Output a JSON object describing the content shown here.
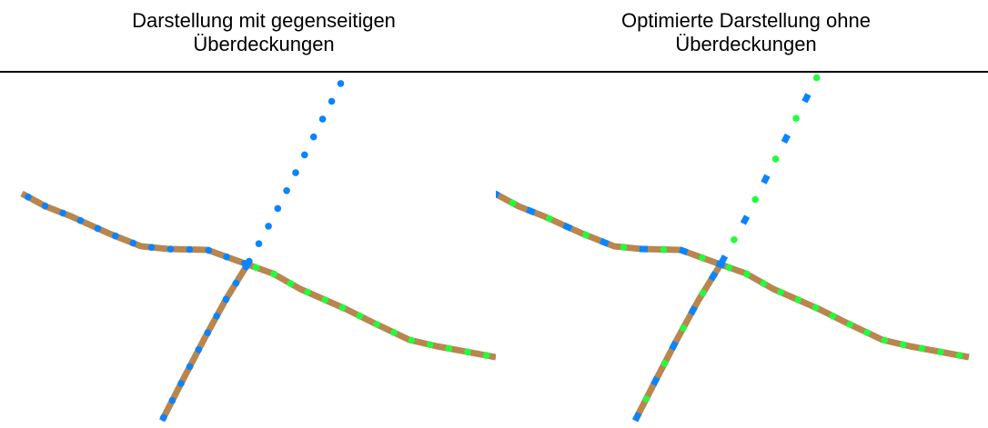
{
  "headings": {
    "left": {
      "line1": "Darstellung mit gegenseitigen",
      "line2": "Überdeckungen"
    },
    "right": {
      "line1": "Optimierte Darstellung ohne",
      "line2": "Überdeckungen"
    }
  },
  "colors": {
    "road": "#b8864e",
    "blue": "#0a84ff",
    "green": "#1fff3c",
    "divider": "#000000"
  }
}
